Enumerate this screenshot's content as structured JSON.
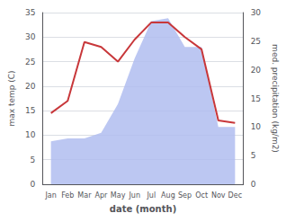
{
  "chart_data": {
    "type": "line",
    "xlabel": "date (month)",
    "ylabel": "max temp (C)",
    "y2label": "med. precipitation (kg/m2)",
    "categories": [
      "Jan",
      "Feb",
      "Mar",
      "Apr",
      "May",
      "Jun",
      "Jul",
      "Aug",
      "Sep",
      "Oct",
      "Nov",
      "Dec"
    ],
    "series": [
      {
        "type": "area",
        "color": "#b0bdf0",
        "axis": "y2",
        "values": [
          7.5,
          8.0,
          8.0,
          9.0,
          14.0,
          22.0,
          28.5,
          29.0,
          24.0,
          24.0,
          10.0,
          10.0
        ]
      },
      {
        "type": "line",
        "color": "#c8373a",
        "values": [
          14.5,
          17.0,
          29.0,
          28.0,
          25.0,
          29.5,
          33.0,
          33.0,
          30.0,
          27.5,
          13.0,
          12.5
        ]
      }
    ],
    "ylim": [
      0,
      35
    ],
    "yticks": [
      0,
      5,
      10,
      15,
      20,
      25,
      30,
      35
    ],
    "y2lim": [
      0,
      30
    ],
    "y2ticks": [
      0,
      5,
      10,
      15,
      20,
      25,
      30
    ],
    "grid": true
  }
}
